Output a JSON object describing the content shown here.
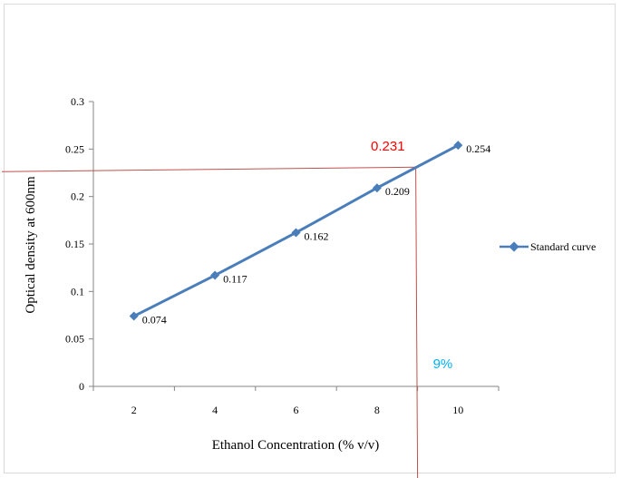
{
  "chart_data": {
    "type": "line",
    "x": [
      2,
      4,
      6,
      8,
      10
    ],
    "series": [
      {
        "name": "Standard curve",
        "values": [
          0.074,
          0.117,
          0.162,
          0.209,
          0.254
        ],
        "color": "#4a7ebb"
      }
    ],
    "data_labels": [
      "0.074",
      "0.117",
      "0.162",
      "0.209",
      "0.254"
    ],
    "xlabel": "Ethanol Concentration (% v/v)",
    "ylabel": "Optical density at 600nm",
    "xticks": [
      "2",
      "4",
      "6",
      "8",
      "10"
    ],
    "yticks": [
      "0",
      "0.05",
      "0.1",
      "0.15",
      "0.2",
      "0.25",
      "0.3"
    ],
    "ylim": [
      0,
      0.3
    ],
    "legend_position": "right",
    "grid": false,
    "annotations": {
      "od_value": {
        "text": "0.231",
        "y": 0.231,
        "color": "#ff0000"
      },
      "concentration": {
        "text": "9%",
        "x": 9,
        "color": "#00b0f0"
      },
      "guide_line_color": "#c0504d"
    }
  }
}
